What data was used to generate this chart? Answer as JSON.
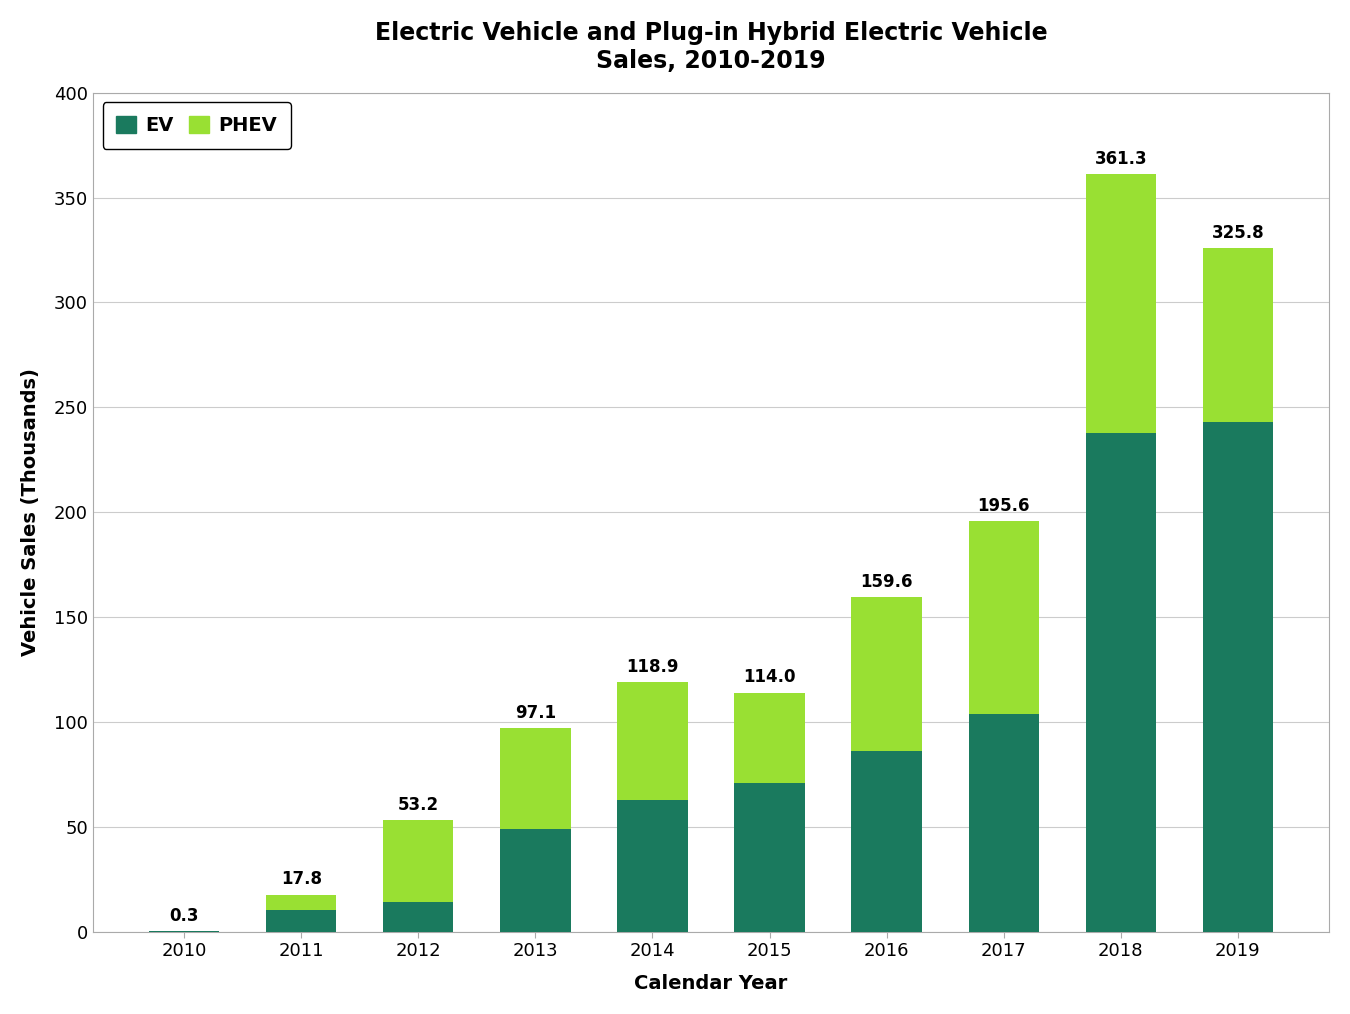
{
  "years": [
    "2010",
    "2011",
    "2012",
    "2013",
    "2014",
    "2015",
    "2016",
    "2017",
    "2018",
    "2019"
  ],
  "ev_values": [
    0.3,
    10.5,
    14.0,
    49.0,
    63.0,
    71.0,
    86.0,
    104.0,
    238.0,
    243.0
  ],
  "phev_values": [
    0.0,
    7.3,
    39.2,
    48.1,
    55.9,
    43.0,
    73.6,
    91.6,
    123.3,
    82.8
  ],
  "totals": [
    0.3,
    17.8,
    53.2,
    97.1,
    118.9,
    114.0,
    159.6,
    195.6,
    361.3,
    325.8
  ],
  "ev_color": "#1a7a5e",
  "phev_color": "#99e033",
  "title_line1": "Electric Vehicle and Plug-in Hybrid Electric Vehicle",
  "title_line2": "Sales, 2010-2019",
  "xlabel": "Calendar Year",
  "ylabel": "Vehicle Sales (Thousands)",
  "ylim": [
    0,
    400
  ],
  "yticks": [
    0,
    50,
    100,
    150,
    200,
    250,
    300,
    350,
    400
  ],
  "legend_ev": "EV",
  "legend_phev": "PHEV",
  "background_color": "#ffffff",
  "grid_color": "#cccccc",
  "bar_width": 0.6,
  "title_fontsize": 17,
  "axis_label_fontsize": 14,
  "tick_fontsize": 13,
  "annotation_fontsize": 12,
  "legend_fontsize": 14
}
